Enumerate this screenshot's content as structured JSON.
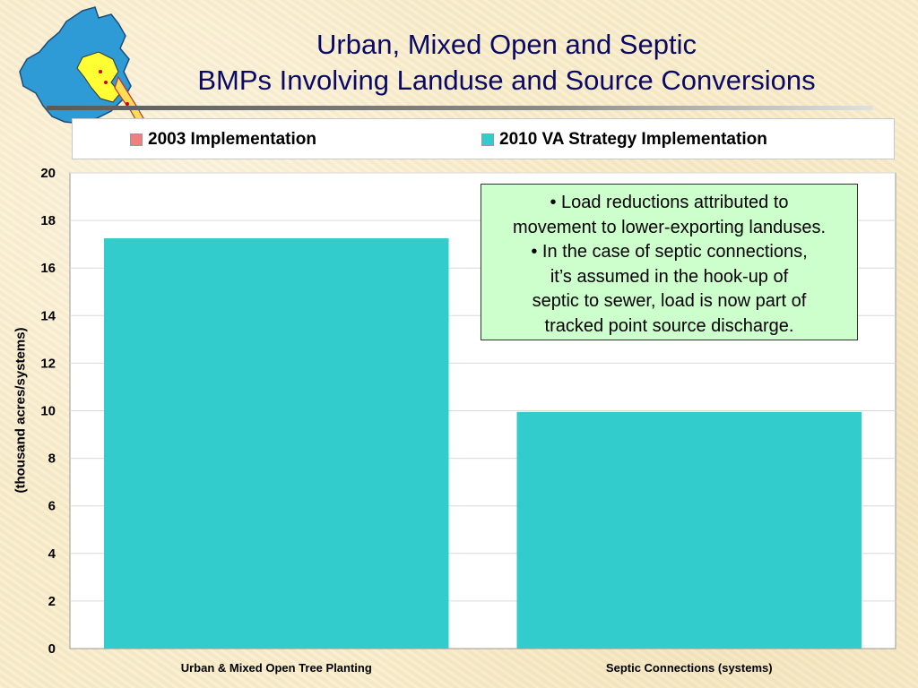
{
  "slide": {
    "title_line1": "Urban, Mixed Open and Septic",
    "title_line2": "BMPs Involving Landuse and Source Conversions"
  },
  "legend": {
    "items": [
      {
        "label": "2003 Implementation",
        "color": "#f08080"
      },
      {
        "label": "2010 VA Strategy Implementation",
        "color": "#33cccc"
      }
    ]
  },
  "note": {
    "lines": [
      "• Load reductions attributed to",
      "movement to lower-exporting landuses.",
      "• In the case of septic connections,",
      "it’s assumed in the hook-up of",
      "septic to sewer, load is now part of",
      "tracked point source discharge."
    ]
  },
  "chart_data": {
    "type": "bar",
    "categories": [
      "Urban & Mixed Open Tree Planting",
      "Septic Connections (systems)"
    ],
    "series": [
      {
        "name": "2003 Implementation",
        "color": "#f08080",
        "values": [
          0,
          0
        ]
      },
      {
        "name": "2010 VA Strategy Implementation",
        "color": "#33cccc",
        "values": [
          17.25,
          9.95
        ]
      }
    ],
    "ylabel": "(thousand acres/systems)",
    "ylim": [
      0,
      20
    ],
    "yticks": [
      "0",
      "2",
      "4",
      "6",
      "8",
      "10",
      "12",
      "14",
      "16",
      "18",
      "20"
    ],
    "grid": true,
    "legend_position": "top"
  }
}
